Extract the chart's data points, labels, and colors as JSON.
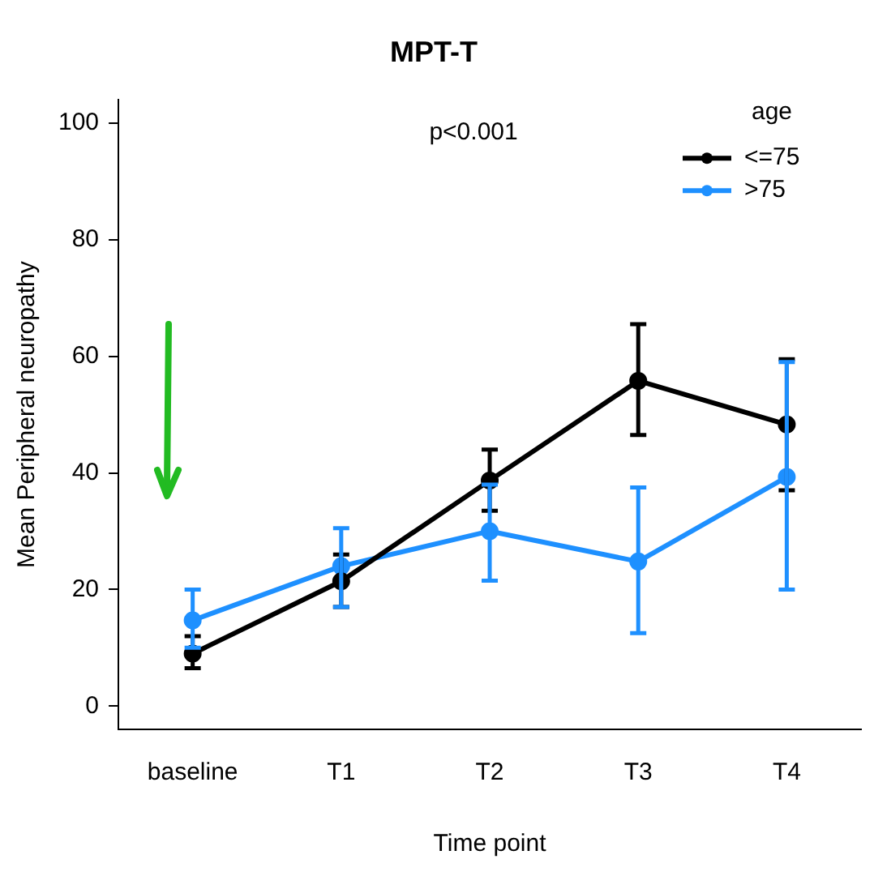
{
  "chart_data": {
    "type": "line",
    "title": "MPT-T",
    "xlabel": "Time point",
    "ylabel": "Mean Peripheral neuropathy",
    "annotations": [
      "p<0.001"
    ],
    "legend_title": "age",
    "legend": "top right",
    "grid": false,
    "marker": "circle",
    "line_style": "solid",
    "categories": [
      "baseline",
      "T1",
      "T2",
      "T3",
      "T4"
    ],
    "ylim": [
      -4,
      104
    ],
    "yticks": [
      0,
      20,
      40,
      60,
      80,
      100
    ],
    "series": [
      {
        "name": "<=75",
        "color": "#000000",
        "values": [
          9,
          21.4,
          38.7,
          55.8,
          48.3
        ],
        "errors": [
          [
            6.5,
            12
          ],
          [
            17,
            26
          ],
          [
            33.5,
            44
          ],
          [
            46.5,
            65.5
          ],
          [
            37,
            59.5
          ]
        ]
      },
      {
        "name": ">75",
        "color": "#1e90ff",
        "values": [
          14.7,
          24,
          30,
          24.8,
          39.3
        ],
        "errors": [
          [
            10,
            20
          ],
          [
            17,
            30.5
          ],
          [
            21.5,
            38
          ],
          [
            12.5,
            37.5
          ],
          [
            20,
            59
          ]
        ]
      }
    ]
  }
}
